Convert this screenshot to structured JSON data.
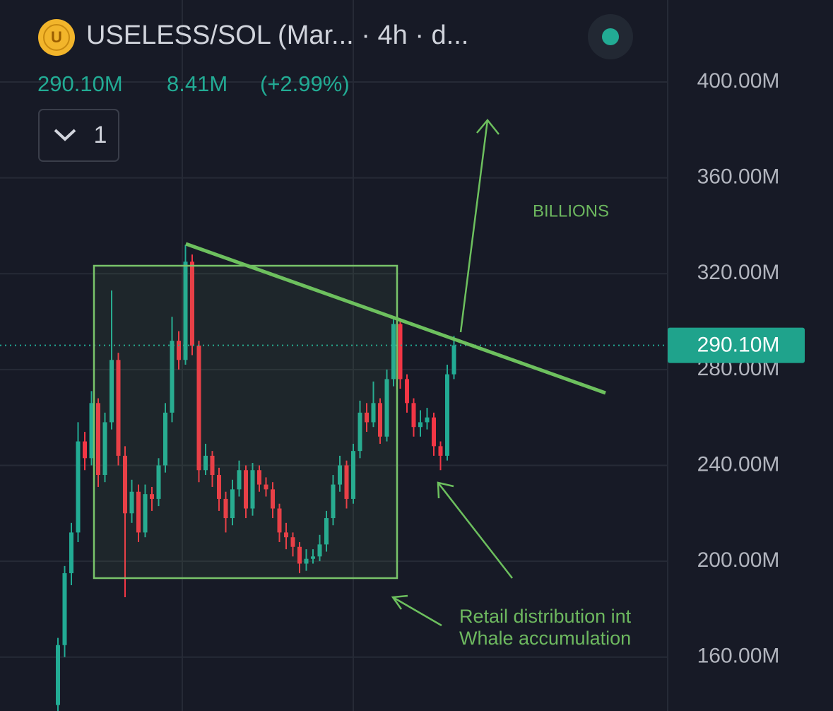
{
  "chart_data": {
    "type": "candlestick",
    "icon_letter": "U",
    "title": "USELESS/SOL (Mar... · 4h · d...",
    "header_price": "290.10M",
    "header_change": "8.41M",
    "header_change_pct": "(+2.99%)",
    "interval_button": "1",
    "up_color": "#22ab94",
    "down_color": "#f23645",
    "open": [
      140,
      165,
      195,
      212,
      250,
      243,
      266,
      236,
      258,
      284,
      244,
      220,
      229,
      212,
      228,
      226,
      240,
      262,
      292,
      284,
      325,
      290,
      238,
      244,
      236,
      226,
      218,
      230,
      238,
      222,
      238,
      232,
      230,
      222,
      212,
      210,
      206,
      199,
      201,
      202,
      207,
      218,
      232,
      240,
      226,
      246,
      262,
      258,
      266,
      252,
      276,
      299,
      276,
      266,
      256,
      258,
      260,
      248,
      244,
      278
    ],
    "high": [
      168,
      198,
      216,
      258,
      254,
      271,
      268,
      262,
      313,
      287,
      248,
      234,
      232,
      232,
      231,
      243,
      266,
      302,
      296,
      332,
      328,
      292,
      249,
      246,
      239,
      229,
      234,
      242,
      240,
      241,
      240,
      235,
      233,
      224,
      216,
      212,
      208,
      205,
      205,
      211,
      221,
      236,
      244,
      242,
      249,
      267,
      266,
      275,
      268,
      280,
      302,
      300,
      278,
      268,
      263,
      264,
      262,
      250,
      282,
      294
    ],
    "low": [
      137,
      160,
      190,
      208,
      238,
      240,
      231,
      233,
      255,
      240,
      185,
      216,
      208,
      210,
      221,
      223,
      237,
      258,
      280,
      282,
      286,
      233,
      236,
      231,
      221,
      212,
      215,
      227,
      218,
      219,
      229,
      227,
      218,
      208,
      205,
      202,
      195,
      196,
      199,
      200,
      204,
      215,
      229,
      222,
      224,
      243,
      254,
      256,
      249,
      250,
      273,
      272,
      262,
      252,
      252,
      255,
      244,
      238,
      242,
      276
    ],
    "close": [
      165,
      195,
      212,
      250,
      243,
      266,
      236,
      258,
      284,
      244,
      220,
      229,
      212,
      228,
      226,
      240,
      262,
      292,
      284,
      325,
      290,
      238,
      244,
      236,
      226,
      218,
      230,
      238,
      222,
      238,
      232,
      230,
      222,
      212,
      210,
      206,
      199,
      201,
      202,
      207,
      218,
      232,
      240,
      226,
      246,
      262,
      258,
      266,
      252,
      276,
      299,
      276,
      266,
      256,
      258,
      260,
      248,
      244,
      278,
      290.1
    ],
    "ylim": [
      137.5,
      434.2
    ],
    "yticks": [
      {
        "value": 160,
        "label": "160.00M"
      },
      {
        "value": 200,
        "label": "200.00M"
      },
      {
        "value": 240,
        "label": "240.00M"
      },
      {
        "value": 280,
        "label": "280.00M"
      },
      {
        "value": 320,
        "label": "320.00M"
      },
      {
        "value": 360,
        "label": "360.00M"
      },
      {
        "value": 400,
        "label": "400.00M"
      }
    ],
    "last_price": {
      "value": 290.1,
      "label": "290.10M"
    },
    "annotations": [
      "BILLIONS",
      "Retail distribution int",
      "Whale accumulation"
    ],
    "grid": true
  }
}
